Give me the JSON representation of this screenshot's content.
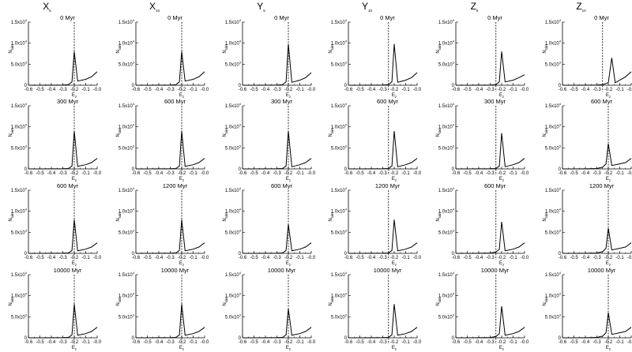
{
  "figure": {
    "columns": [
      {
        "title_main": "X",
        "title_sub": "5"
      },
      {
        "title_main": "X",
        "title_sub": "10"
      },
      {
        "title_main": "Y",
        "title_sub": "5"
      },
      {
        "title_main": "Y",
        "title_sub": "10"
      },
      {
        "title_main": "Z",
        "title_sub": "5"
      },
      {
        "title_main": "Z",
        "title_sub": "10"
      }
    ],
    "xlabel": {
      "main": "E",
      "sub": "z"
    },
    "ylabel": {
      "main": "N",
      "sub": "sim"
    },
    "x_ticks": [
      "-0.6",
      "-0.5",
      "-0.4",
      "-0.3",
      "-0.2",
      "-0.1",
      "-0.0"
    ],
    "x_tick_values": [
      -0.6,
      -0.5,
      -0.4,
      -0.3,
      -0.2,
      -0.1,
      0.0
    ],
    "y_ticks": [
      {
        "value": 0,
        "main": "0",
        "exp": ""
      },
      {
        "value": 5000,
        "main": "5.0x10",
        "exp": "3"
      },
      {
        "value": 10000,
        "main": "1.0x10",
        "exp": "4"
      },
      {
        "value": 15000,
        "main": "1.5x10",
        "exp": "4"
      }
    ],
    "line_color": "#000000"
  },
  "chart_data": [
    {
      "type": "line",
      "row": 0,
      "col": 0,
      "title": "0 Myr",
      "xlim": [
        -0.6,
        0.0
      ],
      "ylim": [
        0,
        15000
      ],
      "vline": -0.2,
      "series": [
        {
          "x": [
            -0.6,
            -0.5,
            -0.4,
            -0.3,
            -0.25,
            -0.22,
            -0.2,
            -0.17,
            -0.1,
            -0.05,
            0.0
          ],
          "y": [
            0,
            0,
            10,
            40,
            150,
            800,
            8000,
            1000,
            1400,
            2000,
            3200
          ]
        }
      ]
    },
    {
      "type": "line",
      "row": 0,
      "col": 1,
      "title": "0 Myr",
      "xlim": [
        -0.6,
        0.0
      ],
      "ylim": [
        0,
        15000
      ],
      "vline": -0.2,
      "series": [
        {
          "x": [
            -0.6,
            -0.5,
            -0.4,
            -0.3,
            -0.25,
            -0.22,
            -0.2,
            -0.17,
            -0.1,
            -0.05,
            0.0
          ],
          "y": [
            0,
            0,
            10,
            40,
            150,
            800,
            8000,
            1000,
            1400,
            2000,
            3200
          ]
        }
      ]
    },
    {
      "type": "line",
      "row": 0,
      "col": 2,
      "title": "0 Myr",
      "xlim": [
        -0.6,
        0.0
      ],
      "ylim": [
        0,
        15000
      ],
      "vline": -0.2,
      "series": [
        {
          "x": [
            -0.6,
            -0.5,
            -0.4,
            -0.3,
            -0.25,
            -0.22,
            -0.2,
            -0.17,
            -0.1,
            -0.05,
            0.0
          ],
          "y": [
            0,
            0,
            10,
            40,
            150,
            800,
            9800,
            700,
            1200,
            1800,
            3000
          ]
        }
      ]
    },
    {
      "type": "line",
      "row": 0,
      "col": 3,
      "title": "0 Myr",
      "xlim": [
        -0.6,
        0.0
      ],
      "ylim": [
        0,
        15000
      ],
      "vline": -0.25,
      "series": [
        {
          "x": [
            -0.6,
            -0.5,
            -0.4,
            -0.3,
            -0.25,
            -0.22,
            -0.2,
            -0.17,
            -0.1,
            -0.05,
            0.0
          ],
          "y": [
            0,
            0,
            10,
            40,
            150,
            800,
            9800,
            700,
            1200,
            1800,
            3000
          ]
        }
      ]
    },
    {
      "type": "line",
      "row": 0,
      "col": 4,
      "title": "0 Myr",
      "xlim": [
        -0.6,
        0.0
      ],
      "ylim": [
        0,
        15000
      ],
      "vline": -0.25,
      "series": [
        {
          "x": [
            -0.6,
            -0.5,
            -0.4,
            -0.3,
            -0.25,
            -0.22,
            -0.2,
            -0.17,
            -0.1,
            -0.05,
            0.0
          ],
          "y": [
            0,
            0,
            10,
            40,
            150,
            800,
            8000,
            800,
            1200,
            1800,
            2500
          ]
        }
      ]
    },
    {
      "type": "line",
      "row": 0,
      "col": 5,
      "title": "0 Myr",
      "xlim": [
        -0.6,
        0.0
      ],
      "ylim": [
        0,
        15000
      ],
      "vline": -0.25,
      "series": [
        {
          "x": [
            -0.6,
            -0.5,
            -0.4,
            -0.3,
            -0.25,
            -0.2,
            -0.17,
            -0.14,
            -0.1,
            -0.05,
            0.0
          ],
          "y": [
            0,
            0,
            10,
            40,
            150,
            600,
            6500,
            600,
            1200,
            2000,
            3200
          ]
        }
      ]
    },
    {
      "type": "line",
      "row": 1,
      "col": 0,
      "title": "300 Myr",
      "xlim": [
        -0.6,
        0.0
      ],
      "ylim": [
        0,
        15000
      ],
      "vline": -0.2,
      "series": [
        {
          "x": [
            -0.6,
            -0.5,
            -0.4,
            -0.3,
            -0.25,
            -0.22,
            -0.2,
            -0.17,
            -0.1,
            -0.05,
            0.0
          ],
          "y": [
            0,
            0,
            10,
            30,
            100,
            700,
            9000,
            600,
            1000,
            1500,
            2500
          ]
        }
      ]
    },
    {
      "type": "line",
      "row": 1,
      "col": 1,
      "title": "600 Myr",
      "xlim": [
        -0.6,
        0.0
      ],
      "ylim": [
        0,
        15000
      ],
      "vline": -0.2,
      "series": [
        {
          "x": [
            -0.6,
            -0.5,
            -0.4,
            -0.3,
            -0.25,
            -0.22,
            -0.2,
            -0.17,
            -0.1,
            -0.05,
            0.0
          ],
          "y": [
            0,
            0,
            10,
            30,
            100,
            700,
            9000,
            600,
            1000,
            1500,
            2500
          ]
        }
      ]
    },
    {
      "type": "line",
      "row": 1,
      "col": 2,
      "title": "300 Myr",
      "xlim": [
        -0.6,
        0.0
      ],
      "ylim": [
        0,
        15000
      ],
      "vline": -0.2,
      "series": [
        {
          "x": [
            -0.6,
            -0.5,
            -0.4,
            -0.3,
            -0.25,
            -0.22,
            -0.2,
            -0.17,
            -0.1,
            -0.05,
            0.0
          ],
          "y": [
            0,
            0,
            10,
            30,
            100,
            700,
            9000,
            500,
            1000,
            1500,
            2500
          ]
        }
      ]
    },
    {
      "type": "line",
      "row": 1,
      "col": 3,
      "title": "600 Myr",
      "xlim": [
        -0.6,
        0.0
      ],
      "ylim": [
        0,
        15000
      ],
      "vline": -0.25,
      "series": [
        {
          "x": [
            -0.6,
            -0.5,
            -0.4,
            -0.3,
            -0.25,
            -0.22,
            -0.2,
            -0.17,
            -0.1,
            -0.05,
            0.0
          ],
          "y": [
            0,
            0,
            10,
            30,
            100,
            700,
            9000,
            500,
            1000,
            1500,
            2500
          ]
        }
      ]
    },
    {
      "type": "line",
      "row": 1,
      "col": 4,
      "title": "300 Myr",
      "xlim": [
        -0.6,
        0.0
      ],
      "ylim": [
        0,
        15000
      ],
      "vline": -0.25,
      "series": [
        {
          "x": [
            -0.6,
            -0.5,
            -0.4,
            -0.3,
            -0.25,
            -0.22,
            -0.2,
            -0.17,
            -0.1,
            -0.05,
            0.0
          ],
          "y": [
            0,
            0,
            10,
            30,
            100,
            700,
            8500,
            500,
            1000,
            1500,
            2500
          ]
        }
      ]
    },
    {
      "type": "line",
      "row": 1,
      "col": 5,
      "title": "600 Myr",
      "xlim": [
        -0.6,
        0.0
      ],
      "ylim": [
        0,
        15000
      ],
      "vline": -0.2,
      "series": [
        {
          "x": [
            -0.6,
            -0.5,
            -0.4,
            -0.3,
            -0.25,
            -0.22,
            -0.2,
            -0.17,
            -0.1,
            -0.05,
            0.0
          ],
          "y": [
            0,
            0,
            20,
            100,
            400,
            1200,
            6000,
            800,
            1200,
            1500,
            2500
          ]
        }
      ]
    },
    {
      "type": "line",
      "row": 2,
      "col": 0,
      "title": "600 Myr",
      "xlim": [
        -0.6,
        0.0
      ],
      "ylim": [
        0,
        15000
      ],
      "vline": -0.2,
      "series": [
        {
          "x": [
            -0.6,
            -0.5,
            -0.4,
            -0.3,
            -0.25,
            -0.22,
            -0.2,
            -0.17,
            -0.1,
            -0.05,
            0.0
          ],
          "y": [
            0,
            0,
            10,
            30,
            100,
            700,
            8000,
            600,
            1000,
            1500,
            2500
          ]
        }
      ]
    },
    {
      "type": "line",
      "row": 2,
      "col": 1,
      "title": "1200 Myr",
      "xlim": [
        -0.6,
        0.0
      ],
      "ylim": [
        0,
        15000
      ],
      "vline": -0.2,
      "series": [
        {
          "x": [
            -0.6,
            -0.5,
            -0.4,
            -0.3,
            -0.25,
            -0.22,
            -0.2,
            -0.17,
            -0.1,
            -0.05,
            0.0
          ],
          "y": [
            0,
            0,
            10,
            30,
            100,
            700,
            8000,
            600,
            1000,
            1500,
            2500
          ]
        }
      ]
    },
    {
      "type": "line",
      "row": 2,
      "col": 2,
      "title": "600 Myr",
      "xlim": [
        -0.6,
        0.0
      ],
      "ylim": [
        0,
        15000
      ],
      "vline": -0.2,
      "series": [
        {
          "x": [
            -0.6,
            -0.5,
            -0.4,
            -0.3,
            -0.25,
            -0.22,
            -0.2,
            -0.17,
            -0.1,
            -0.05,
            0.0
          ],
          "y": [
            0,
            0,
            10,
            30,
            100,
            700,
            6900,
            600,
            1000,
            1500,
            2500
          ]
        }
      ]
    },
    {
      "type": "line",
      "row": 2,
      "col": 3,
      "title": "1200 Myr",
      "xlim": [
        -0.6,
        0.0
      ],
      "ylim": [
        0,
        15000
      ],
      "vline": -0.25,
      "series": [
        {
          "x": [
            -0.6,
            -0.5,
            -0.4,
            -0.3,
            -0.25,
            -0.22,
            -0.2,
            -0.17,
            -0.1,
            -0.05,
            0.0
          ],
          "y": [
            0,
            0,
            10,
            30,
            100,
            700,
            8000,
            600,
            1000,
            1500,
            2500
          ]
        }
      ]
    },
    {
      "type": "line",
      "row": 2,
      "col": 4,
      "title": "600 Myr",
      "xlim": [
        -0.6,
        0.0
      ],
      "ylim": [
        0,
        15000
      ],
      "vline": -0.25,
      "series": [
        {
          "x": [
            -0.6,
            -0.5,
            -0.4,
            -0.3,
            -0.25,
            -0.22,
            -0.2,
            -0.17,
            -0.1,
            -0.05,
            0.0
          ],
          "y": [
            0,
            0,
            20,
            80,
            300,
            1000,
            7500,
            600,
            1000,
            1500,
            2500
          ]
        }
      ]
    },
    {
      "type": "line",
      "row": 2,
      "col": 5,
      "title": "1200 Myr",
      "xlim": [
        -0.6,
        0.0
      ],
      "ylim": [
        0,
        15000
      ],
      "vline": -0.2,
      "series": [
        {
          "x": [
            -0.6,
            -0.5,
            -0.4,
            -0.3,
            -0.25,
            -0.22,
            -0.2,
            -0.17,
            -0.1,
            -0.05,
            0.0
          ],
          "y": [
            0,
            0,
            20,
            100,
            400,
            1200,
            6000,
            800,
            1200,
            1500,
            2500
          ]
        }
      ]
    },
    {
      "type": "line",
      "row": 3,
      "col": 0,
      "title": "10000 Myr",
      "xlim": [
        -0.6,
        0.0
      ],
      "ylim": [
        0,
        15000
      ],
      "vline": -0.2,
      "series": [
        {
          "x": [
            -0.6,
            -0.5,
            -0.4,
            -0.3,
            -0.25,
            -0.22,
            -0.2,
            -0.17,
            -0.1,
            -0.05,
            0.0
          ],
          "y": [
            0,
            0,
            10,
            30,
            100,
            700,
            8000,
            600,
            1000,
            1500,
            2500
          ]
        }
      ]
    },
    {
      "type": "line",
      "row": 3,
      "col": 1,
      "title": "10000 Myr",
      "xlim": [
        -0.6,
        0.0
      ],
      "ylim": [
        0,
        15000
      ],
      "vline": -0.2,
      "series": [
        {
          "x": [
            -0.6,
            -0.5,
            -0.4,
            -0.3,
            -0.25,
            -0.22,
            -0.2,
            -0.17,
            -0.1,
            -0.05,
            0.0
          ],
          "y": [
            0,
            0,
            10,
            30,
            100,
            700,
            8000,
            600,
            1000,
            1500,
            2500
          ]
        }
      ]
    },
    {
      "type": "line",
      "row": 3,
      "col": 2,
      "title": "10000 Myr",
      "xlim": [
        -0.6,
        0.0
      ],
      "ylim": [
        0,
        15000
      ],
      "vline": -0.2,
      "series": [
        {
          "x": [
            -0.6,
            -0.5,
            -0.4,
            -0.3,
            -0.25,
            -0.22,
            -0.2,
            -0.17,
            -0.1,
            -0.05,
            0.0
          ],
          "y": [
            0,
            0,
            10,
            30,
            100,
            700,
            6900,
            600,
            1000,
            1500,
            2500
          ]
        }
      ]
    },
    {
      "type": "line",
      "row": 3,
      "col": 3,
      "title": "10000 Myr",
      "xlim": [
        -0.6,
        0.0
      ],
      "ylim": [
        0,
        15000
      ],
      "vline": -0.25,
      "series": [
        {
          "x": [
            -0.6,
            -0.5,
            -0.4,
            -0.3,
            -0.25,
            -0.22,
            -0.2,
            -0.17,
            -0.1,
            -0.05,
            0.0
          ],
          "y": [
            0,
            0,
            10,
            30,
            100,
            700,
            8000,
            600,
            1000,
            1500,
            2500
          ]
        }
      ]
    },
    {
      "type": "line",
      "row": 3,
      "col": 4,
      "title": "10000 Myr",
      "xlim": [
        -0.6,
        0.0
      ],
      "ylim": [
        0,
        15000
      ],
      "vline": -0.25,
      "series": [
        {
          "x": [
            -0.6,
            -0.5,
            -0.4,
            -0.3,
            -0.25,
            -0.22,
            -0.2,
            -0.17,
            -0.1,
            -0.05,
            0.0
          ],
          "y": [
            0,
            0,
            20,
            80,
            300,
            1000,
            7500,
            600,
            1000,
            1500,
            2500
          ]
        }
      ]
    },
    {
      "type": "line",
      "row": 3,
      "col": 5,
      "title": "10000 Myr",
      "xlim": [
        -0.6,
        0.0
      ],
      "ylim": [
        0,
        15000
      ],
      "vline": -0.2,
      "series": [
        {
          "x": [
            -0.6,
            -0.5,
            -0.4,
            -0.3,
            -0.25,
            -0.22,
            -0.2,
            -0.17,
            -0.1,
            -0.05,
            0.0
          ],
          "y": [
            0,
            0,
            20,
            100,
            400,
            1200,
            6000,
            800,
            1200,
            1500,
            2500
          ]
        }
      ]
    }
  ]
}
